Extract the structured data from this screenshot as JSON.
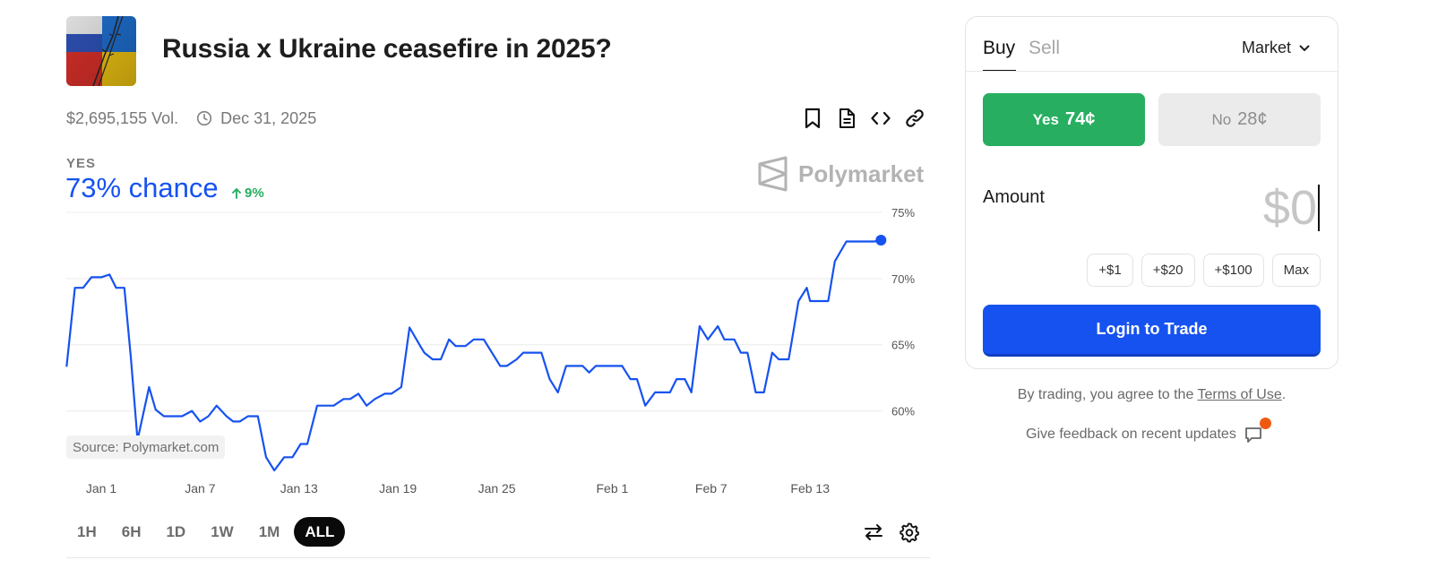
{
  "market": {
    "title": "Russia x Ukraine ceasefire in 2025?",
    "volume": "$2,695,155 Vol.",
    "end_date": "Dec 31, 2025",
    "outcome_label": "YES",
    "chance": "73% chance",
    "change": "9%",
    "watermark": "Polymarket",
    "source": "Source: Polymarket.com"
  },
  "icons": {
    "thumbnail": "flag-thumbnail",
    "clock": "clock-icon",
    "actions": [
      "bookmark-icon",
      "document-icon",
      "code-icon",
      "link-icon"
    ],
    "chart_tools": [
      "swap-icon",
      "settings-icon"
    ],
    "feedback": "chat-icon"
  },
  "colors": {
    "accent": "#1652f0",
    "yes": "#27ae60",
    "no_bg": "#ebebeb",
    "notification": "#ef5a13"
  },
  "time_ranges": [
    {
      "label": "1H",
      "active": false
    },
    {
      "label": "6H",
      "active": false
    },
    {
      "label": "1D",
      "active": false
    },
    {
      "label": "1W",
      "active": false
    },
    {
      "label": "1M",
      "active": false
    },
    {
      "label": "ALL",
      "active": true
    }
  ],
  "chart_data": {
    "type": "line",
    "title": "",
    "xlabel": "",
    "ylabel": "",
    "ylim": [
      55.3,
      75
    ],
    "yticks": [
      60,
      65,
      70,
      75
    ],
    "ytick_labels": [
      "60%",
      "65%",
      "70%",
      "75%"
    ],
    "xtick_labels": [
      "Jan 1",
      "Jan 7",
      "Jan 13",
      "Jan 19",
      "Jan 25",
      "Feb 1",
      "Feb 7",
      "Feb 13"
    ],
    "xtick_days": [
      0,
      6,
      12,
      18,
      24,
      31,
      37,
      43
    ],
    "grid": true,
    "legend": "none",
    "series": [
      {
        "color": "#1652f0",
        "x": [
          -2.1,
          -1.6,
          -1.1,
          -0.6,
          0,
          0.5,
          0.9,
          1.4,
          1.8,
          2.2,
          2.9,
          3.3,
          3.8,
          4.2,
          4.9,
          5.5,
          6.0,
          6.5,
          7.0,
          7.6,
          8.0,
          8.4,
          8.9,
          9.5,
          10.0,
          10.5,
          11.1,
          11.6,
          12.1,
          12.5,
          13.1,
          13.6,
          14.1,
          14.7,
          15.1,
          15.6,
          16.1,
          16.6,
          17.2,
          17.6,
          18.2,
          18.7,
          19.4,
          19.6,
          20.1,
          20.6,
          21.1,
          21.5,
          22.1,
          22.6,
          23.2,
          23.7,
          24.2,
          24.6,
          25.2,
          25.6,
          26.1,
          26.7,
          27.2,
          27.7,
          28.2,
          29.2,
          29.6,
          30.0,
          31.2,
          31.6,
          32.1,
          32.5,
          33.0,
          33.6,
          34.5,
          34.9,
          35.4,
          35.8,
          36.3,
          36.8,
          37.4,
          37.8,
          38.4,
          38.8,
          39.2,
          39.7,
          40.2,
          40.7,
          41.1,
          41.7,
          42.3,
          42.8,
          43.0,
          43.2,
          43.7,
          44.1,
          44.5,
          45.2,
          45.5,
          46.0,
          46.4,
          46.9,
          47.3
        ],
        "y": [
          63.4,
          69.3,
          69.3,
          70.1,
          70.1,
          70.3,
          69.3,
          69.3,
          64.0,
          57.8,
          61.8,
          60.1,
          59.6,
          59.6,
          59.6,
          60.0,
          59.2,
          59.6,
          60.4,
          59.6,
          59.2,
          59.2,
          59.6,
          59.6,
          56.5,
          55.5,
          56.5,
          56.5,
          57.5,
          57.5,
          60.4,
          60.4,
          60.4,
          60.9,
          60.9,
          61.3,
          60.4,
          60.9,
          61.3,
          61.3,
          61.8,
          66.3,
          64.8,
          64.4,
          63.9,
          63.9,
          65.4,
          64.9,
          64.9,
          65.4,
          65.4,
          64.4,
          63.4,
          63.4,
          63.9,
          64.4,
          64.4,
          64.4,
          62.4,
          61.4,
          63.4,
          63.4,
          62.9,
          63.4,
          63.4,
          63.4,
          62.4,
          62.4,
          60.4,
          61.4,
          61.4,
          62.4,
          62.4,
          61.4,
          66.4,
          65.4,
          66.4,
          65.4,
          65.4,
          64.4,
          64.4,
          61.4,
          61.4,
          64.4,
          63.9,
          63.9,
          68.3,
          69.3,
          68.3,
          68.3,
          68.3,
          68.3,
          71.3,
          72.8,
          72.8,
          72.8,
          72.8,
          72.8,
          72.9
        ]
      }
    ]
  },
  "trade": {
    "tabs": {
      "buy": "Buy",
      "sell": "Sell"
    },
    "order_type": "Market",
    "yes": {
      "label": "Yes",
      "price": "74¢"
    },
    "no": {
      "label": "No",
      "price": "28¢"
    },
    "amount_label": "Amount",
    "amount_value": "$0",
    "quick_amounts": [
      "+$1",
      "+$20",
      "+$100",
      "Max"
    ],
    "login_button": "Login to Trade",
    "terms_prefix": "By trading, you agree to the ",
    "terms_link": "Terms of Use",
    "terms_suffix": ".",
    "feedback": "Give feedback on recent updates"
  }
}
